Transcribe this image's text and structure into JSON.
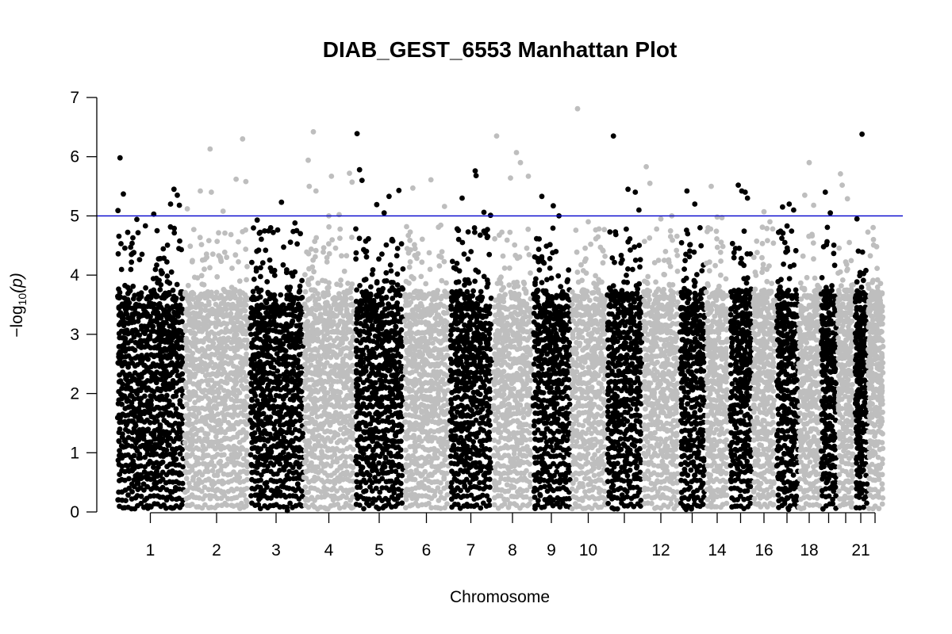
{
  "chart_data": {
    "type": "scatter",
    "subtype": "manhattan",
    "title": "DIAB_GEST_6553 Manhattan Plot",
    "xlabel": "Chromosome",
    "ylabel_prefix": "−log",
    "ylabel_sub": "10",
    "ylabel_suffix": "(p)",
    "ylim": [
      0,
      7
    ],
    "yticks": [
      0,
      1,
      2,
      3,
      4,
      5,
      6,
      7
    ],
    "threshold": 5,
    "threshold_color": "#0000cc",
    "colors": [
      "#000000",
      "#bebebe"
    ],
    "grid": false,
    "chromosomes": [
      {
        "chr": 1,
        "label": "1",
        "top_points": [
          [
            0.02,
            5.09
          ],
          [
            0.05,
            5.98
          ],
          [
            0.1,
            5.37
          ],
          [
            0.3,
            4.94
          ],
          [
            0.55,
            5.03
          ],
          [
            0.6,
            4.75
          ],
          [
            0.8,
            5.2
          ],
          [
            0.85,
            5.45
          ],
          [
            0.9,
            5.35
          ],
          [
            0.93,
            5.18
          ]
        ]
      },
      {
        "chr": 2,
        "label": "2",
        "top_points": [
          [
            0.05,
            5.12
          ],
          [
            0.25,
            5.42
          ],
          [
            0.4,
            6.13
          ],
          [
            0.42,
            5.4
          ],
          [
            0.6,
            5.08
          ],
          [
            0.8,
            5.62
          ],
          [
            0.9,
            6.3
          ],
          [
            0.95,
            5.58
          ]
        ]
      },
      {
        "chr": 3,
        "label": "3",
        "top_points": [
          [
            0.15,
            4.93
          ],
          [
            0.4,
            4.8
          ],
          [
            0.6,
            5.23
          ],
          [
            0.85,
            4.88
          ],
          [
            0.95,
            4.7
          ]
        ]
      },
      {
        "chr": 4,
        "label": "4",
        "top_points": [
          [
            0.1,
            5.94
          ],
          [
            0.12,
            5.5
          ],
          [
            0.2,
            6.42
          ],
          [
            0.25,
            5.42
          ],
          [
            0.5,
            5.0
          ],
          [
            0.55,
            5.67
          ],
          [
            0.7,
            5.02
          ],
          [
            0.9,
            5.72
          ],
          [
            0.95,
            5.57
          ]
        ]
      },
      {
        "chr": 5,
        "label": "5",
        "top_points": [
          [
            0.05,
            6.39
          ],
          [
            0.1,
            5.78
          ],
          [
            0.15,
            5.6
          ],
          [
            0.45,
            5.19
          ],
          [
            0.6,
            5.05
          ],
          [
            0.7,
            5.33
          ],
          [
            0.9,
            5.43
          ]
        ]
      },
      {
        "chr": 6,
        "label": "6",
        "top_points": [
          [
            0.2,
            5.47
          ],
          [
            0.6,
            5.61
          ],
          [
            0.9,
            5.16
          ]
        ]
      },
      {
        "chr": 7,
        "label": "7",
        "top_points": [
          [
            0.3,
            5.3
          ],
          [
            0.6,
            5.76
          ],
          [
            0.62,
            5.68
          ],
          [
            0.8,
            5.06
          ],
          [
            0.95,
            5.01
          ]
        ]
      },
      {
        "chr": 8,
        "label": "8",
        "top_points": [
          [
            0.1,
            6.35
          ],
          [
            0.45,
            5.64
          ],
          [
            0.6,
            6.07
          ],
          [
            0.7,
            5.9
          ],
          [
            0.9,
            5.67
          ]
        ]
      },
      {
        "chr": 9,
        "label": "9",
        "top_points": [
          [
            0.25,
            5.33
          ],
          [
            0.55,
            5.17
          ],
          [
            0.7,
            5.0
          ]
        ]
      },
      {
        "chr": 10,
        "label": "10",
        "top_points": [
          [
            0.2,
            6.81
          ],
          [
            0.5,
            4.9
          ],
          [
            0.8,
            4.78
          ]
        ]
      },
      {
        "chr": 11,
        "label": "",
        "top_points": [
          [
            0.2,
            6.35
          ],
          [
            0.6,
            5.45
          ],
          [
            0.8,
            5.4
          ],
          [
            0.9,
            5.1
          ]
        ]
      },
      {
        "chr": 12,
        "label": "12",
        "top_points": [
          [
            0.1,
            5.83
          ],
          [
            0.2,
            5.55
          ],
          [
            0.5,
            4.95
          ],
          [
            0.8,
            5.0
          ]
        ]
      },
      {
        "chr": 13,
        "label": "",
        "top_points": [
          [
            0.3,
            5.42
          ],
          [
            0.6,
            5.2
          ],
          [
            0.8,
            4.8
          ]
        ]
      },
      {
        "chr": 14,
        "label": "14",
        "top_points": [
          [
            0.25,
            5.5
          ],
          [
            0.5,
            4.98
          ],
          [
            0.7,
            4.97
          ]
        ]
      },
      {
        "chr": 15,
        "label": "",
        "top_points": [
          [
            0.4,
            5.52
          ],
          [
            0.55,
            5.42
          ],
          [
            0.7,
            5.4
          ],
          [
            0.8,
            5.3
          ]
        ]
      },
      {
        "chr": 16,
        "label": "16",
        "top_points": [
          [
            0.5,
            5.07
          ],
          [
            0.75,
            4.9
          ]
        ]
      },
      {
        "chr": 17,
        "label": "",
        "top_points": [
          [
            0.3,
            5.15
          ],
          [
            0.6,
            5.2
          ],
          [
            0.8,
            5.1
          ]
        ]
      },
      {
        "chr": 18,
        "label": "18",
        "top_points": [
          [
            0.5,
            5.9
          ],
          [
            0.3,
            5.35
          ],
          [
            0.7,
            5.18
          ]
        ]
      },
      {
        "chr": 19,
        "label": "",
        "top_points": [
          [
            0.3,
            5.4
          ],
          [
            0.6,
            5.05
          ]
        ]
      },
      {
        "chr": 20,
        "label": "",
        "top_points": [
          [
            0.2,
            5.71
          ],
          [
            0.3,
            5.52
          ],
          [
            0.6,
            5.29
          ]
        ]
      },
      {
        "chr": 21,
        "label": "21",
        "top_points": [
          [
            0.2,
            4.95
          ],
          [
            0.6,
            6.38
          ]
        ]
      },
      {
        "chr": 22,
        "label": "",
        "top_points": [
          [
            0.4,
            4.6
          ],
          [
            0.6,
            4.48
          ]
        ]
      }
    ]
  }
}
